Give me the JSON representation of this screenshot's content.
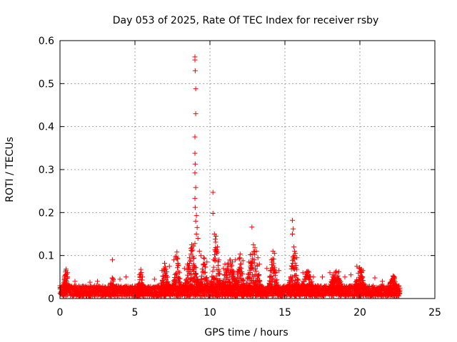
{
  "chart_data": {
    "type": "scatter",
    "title": "Day 053 of 2025, Rate Of TEC Index for receiver rsby",
    "xlabel": "GPS time / hours",
    "ylabel": "ROTI / TECUs",
    "xlim": [
      0,
      25
    ],
    "ylim": [
      0,
      0.6
    ],
    "xticks": [
      0,
      5,
      10,
      15,
      20,
      25
    ],
    "yticks": [
      0,
      0.1,
      0.2,
      0.3,
      0.4,
      0.5,
      0.6
    ],
    "grid": true,
    "marker": "+",
    "color": "#ff0000",
    "baseline": {
      "x_start": 0.0,
      "x_end": 22.7,
      "min": 0.005,
      "max": 0.03
    },
    "x_step_hours": 0.05,
    "series": [
      {
        "name": "ROTI",
        "points": [
          [
            9.0,
            0.562
          ],
          [
            9.0,
            0.555
          ],
          [
            9.02,
            0.53
          ],
          [
            9.05,
            0.488
          ],
          [
            9.05,
            0.43
          ],
          [
            9.0,
            0.376
          ],
          [
            9.0,
            0.338
          ],
          [
            9.02,
            0.313
          ],
          [
            9.0,
            0.292
          ],
          [
            9.05,
            0.258
          ],
          [
            9.0,
            0.233
          ],
          [
            9.02,
            0.212
          ],
          [
            9.1,
            0.193
          ],
          [
            9.05,
            0.18
          ],
          [
            9.15,
            0.165
          ],
          [
            9.1,
            0.15
          ],
          [
            9.2,
            0.14
          ],
          [
            9.0,
            0.128
          ],
          [
            8.9,
            0.122
          ],
          [
            8.8,
            0.118
          ],
          [
            8.75,
            0.112
          ],
          [
            9.3,
            0.11
          ],
          [
            9.4,
            0.1
          ],
          [
            10.2,
            0.247
          ],
          [
            10.2,
            0.198
          ],
          [
            10.3,
            0.15
          ],
          [
            10.4,
            0.145
          ],
          [
            10.35,
            0.138
          ],
          [
            10.5,
            0.12
          ],
          [
            10.45,
            0.105
          ],
          [
            10.6,
            0.09
          ],
          [
            12.8,
            0.166
          ],
          [
            12.9,
            0.125
          ],
          [
            13.0,
            0.118
          ],
          [
            13.1,
            0.11
          ],
          [
            12.7,
            0.102
          ],
          [
            13.2,
            0.095
          ],
          [
            12.6,
            0.085
          ],
          [
            13.3,
            0.08
          ],
          [
            15.5,
            0.182
          ],
          [
            15.55,
            0.162
          ],
          [
            15.5,
            0.15
          ],
          [
            15.6,
            0.12
          ],
          [
            15.65,
            0.11
          ],
          [
            15.7,
            0.105
          ],
          [
            15.8,
            0.095
          ],
          [
            3.5,
            0.09
          ],
          [
            7.8,
            0.108
          ],
          [
            7.7,
            0.098
          ],
          [
            7.6,
            0.09
          ],
          [
            7.3,
            0.075
          ],
          [
            7.0,
            0.07
          ],
          [
            6.8,
            0.065
          ],
          [
            11.5,
            0.085
          ],
          [
            11.4,
            0.08
          ],
          [
            11.7,
            0.09
          ],
          [
            12.0,
            0.095
          ],
          [
            12.2,
            0.088
          ],
          [
            14.2,
            0.11
          ],
          [
            14.3,
            0.105
          ],
          [
            14.1,
            0.09
          ],
          [
            16.2,
            0.06
          ],
          [
            16.5,
            0.06
          ],
          [
            18.0,
            0.06
          ],
          [
            18.6,
            0.062
          ],
          [
            19.8,
            0.075
          ],
          [
            20.1,
            0.068
          ],
          [
            20.2,
            0.065
          ],
          [
            22.3,
            0.05
          ],
          [
            22.2,
            0.045
          ],
          [
            0.3,
            0.05
          ],
          [
            0.4,
            0.065
          ],
          [
            0.5,
            0.06
          ],
          [
            1.0,
            0.04
          ],
          [
            2.0,
            0.038
          ],
          [
            2.5,
            0.04
          ],
          [
            4.0,
            0.045
          ],
          [
            4.4,
            0.05
          ],
          [
            5.3,
            0.055
          ],
          [
            5.5,
            0.05
          ],
          [
            6.3,
            0.045
          ],
          [
            8.3,
            0.07
          ],
          [
            8.5,
            0.08
          ],
          [
            9.6,
            0.08
          ],
          [
            9.8,
            0.085
          ],
          [
            10.9,
            0.07
          ],
          [
            11.0,
            0.08
          ],
          [
            13.8,
            0.07
          ],
          [
            14.6,
            0.065
          ],
          [
            16.9,
            0.05
          ],
          [
            17.5,
            0.05
          ],
          [
            18.2,
            0.055
          ],
          [
            19.0,
            0.05
          ],
          [
            19.4,
            0.055
          ],
          [
            21.0,
            0.048
          ],
          [
            21.5,
            0.04
          ]
        ]
      }
    ],
    "clusters": [
      {
        "center": 0.4,
        "halfwidth": 0.25,
        "peak": 0.055
      },
      {
        "center": 3.5,
        "halfwidth": 0.2,
        "peak": 0.045
      },
      {
        "center": 5.4,
        "halfwidth": 0.25,
        "peak": 0.05
      },
      {
        "center": 7.0,
        "halfwidth": 0.35,
        "peak": 0.065
      },
      {
        "center": 7.8,
        "halfwidth": 0.3,
        "peak": 0.09
      },
      {
        "center": 8.8,
        "halfwidth": 0.55,
        "peak": 0.11
      },
      {
        "center": 9.6,
        "halfwidth": 0.35,
        "peak": 0.08
      },
      {
        "center": 10.4,
        "halfwidth": 0.4,
        "peak": 0.12
      },
      {
        "center": 11.3,
        "halfwidth": 0.6,
        "peak": 0.08
      },
      {
        "center": 12.0,
        "halfwidth": 0.35,
        "peak": 0.09
      },
      {
        "center": 12.9,
        "halfwidth": 0.55,
        "peak": 0.11
      },
      {
        "center": 14.2,
        "halfwidth": 0.35,
        "peak": 0.09
      },
      {
        "center": 15.6,
        "halfwidth": 0.4,
        "peak": 0.1
      },
      {
        "center": 16.5,
        "halfwidth": 0.5,
        "peak": 0.055
      },
      {
        "center": 18.4,
        "halfwidth": 0.5,
        "peak": 0.055
      },
      {
        "center": 20.0,
        "halfwidth": 0.4,
        "peak": 0.06
      },
      {
        "center": 22.2,
        "halfwidth": 0.35,
        "peak": 0.045
      }
    ]
  }
}
